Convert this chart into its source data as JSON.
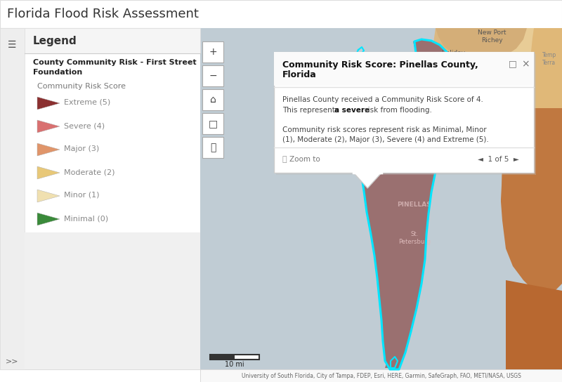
{
  "title": "Florida Flood Risk Assessment",
  "title_color": "#333333",
  "title_fontsize": 13,
  "bg_color": "#ffffff",
  "map_bg": "#c8d0d8",
  "sidebar_bg": "#ffffff",
  "legend_title": "Legend",
  "legend_subtitle": "County Community Risk - First Street\nFoundation",
  "legend_sub2": "Community Risk Score",
  "legend_items": [
    {
      "label": "Extreme (5)",
      "color": "#8b3030"
    },
    {
      "label": "Severe (4)",
      "color": "#d97070"
    },
    {
      "label": "Major (3)",
      "color": "#e0956a"
    },
    {
      "label": "Moderate (2)",
      "color": "#e8c878"
    },
    {
      "label": "Minor (1)",
      "color": "#f0e0b0"
    },
    {
      "label": "Minimal (0)",
      "color": "#3a8a3a"
    }
  ],
  "popup_title1": "Community Risk Score: Pinellas County,",
  "popup_title2": "Florida",
  "popup_body1": "Pinellas County received a Community Risk Score of 4.",
  "popup_body2_pre": "This represents ",
  "popup_body2_bold": "a severe",
  "popup_body2_post": " risk from flooding.",
  "popup_body3": "Community risk scores represent risk as Minimal, Minor",
  "popup_body4": "(1), Moderate (2), Major (3), Severe (4) and Extreme (5).",
  "popup_zoom": "Zoom to",
  "popup_nav": "◄  1 of 5  ►",
  "footer": "University of South Florida, City of Tampa, FDEP, Esri, HERE, Garmin, SafeGraph, FAO, METI/NASA, USGS",
  "scale_bar_label": "10 mi",
  "map_colors": {
    "water": "#c0ccd4",
    "pinellas": "#9b7070",
    "hillsborough_orange": "#c87848",
    "pasco_tan": "#d4a870",
    "hernando_light": "#e8c890",
    "upper_tan": "#d8b880",
    "upper_light": "#e8d0a0",
    "right_orange": "#c07840",
    "right_dark_orange": "#b86830",
    "right_light_tan": "#e0c090",
    "highlight_cyan": "#00e5ff"
  }
}
